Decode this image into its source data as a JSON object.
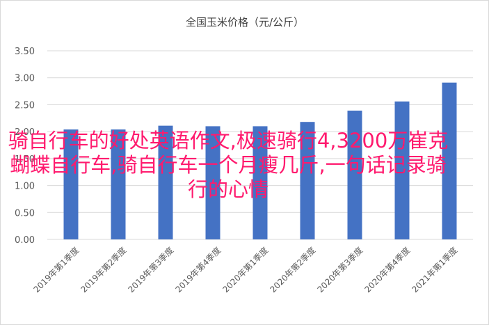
{
  "chart_data": {
    "type": "bar",
    "title": "全国玉米价格（元/公斤）",
    "categories": [
      "2019年第1季度",
      "2019年第2季度",
      "2019年第3季度",
      "2019年第4季度",
      "2020年第1季度",
      "2020年第2季度",
      "2020年第3季度",
      "2020年第4季度",
      "2021年第1季度"
    ],
    "values": [
      2.04,
      2.04,
      2.11,
      2.1,
      2.1,
      2.18,
      2.39,
      2.56,
      2.91
    ],
    "ylim": [
      0,
      3.5
    ],
    "yticks": [
      "0.00",
      "0.50",
      "1.00",
      "1.50",
      "2.00",
      "2.50",
      "3.00",
      "3.50"
    ],
    "grid": true,
    "bar_color": "#4472c4"
  },
  "overlay_text": "骑自行车的好处英语作文,极速骑行4,3200万崔克蝴蝶自行车,骑自行车一个月瘦几斤,一句话记录骑行的心情",
  "overlay_color": "#ff1a6e"
}
